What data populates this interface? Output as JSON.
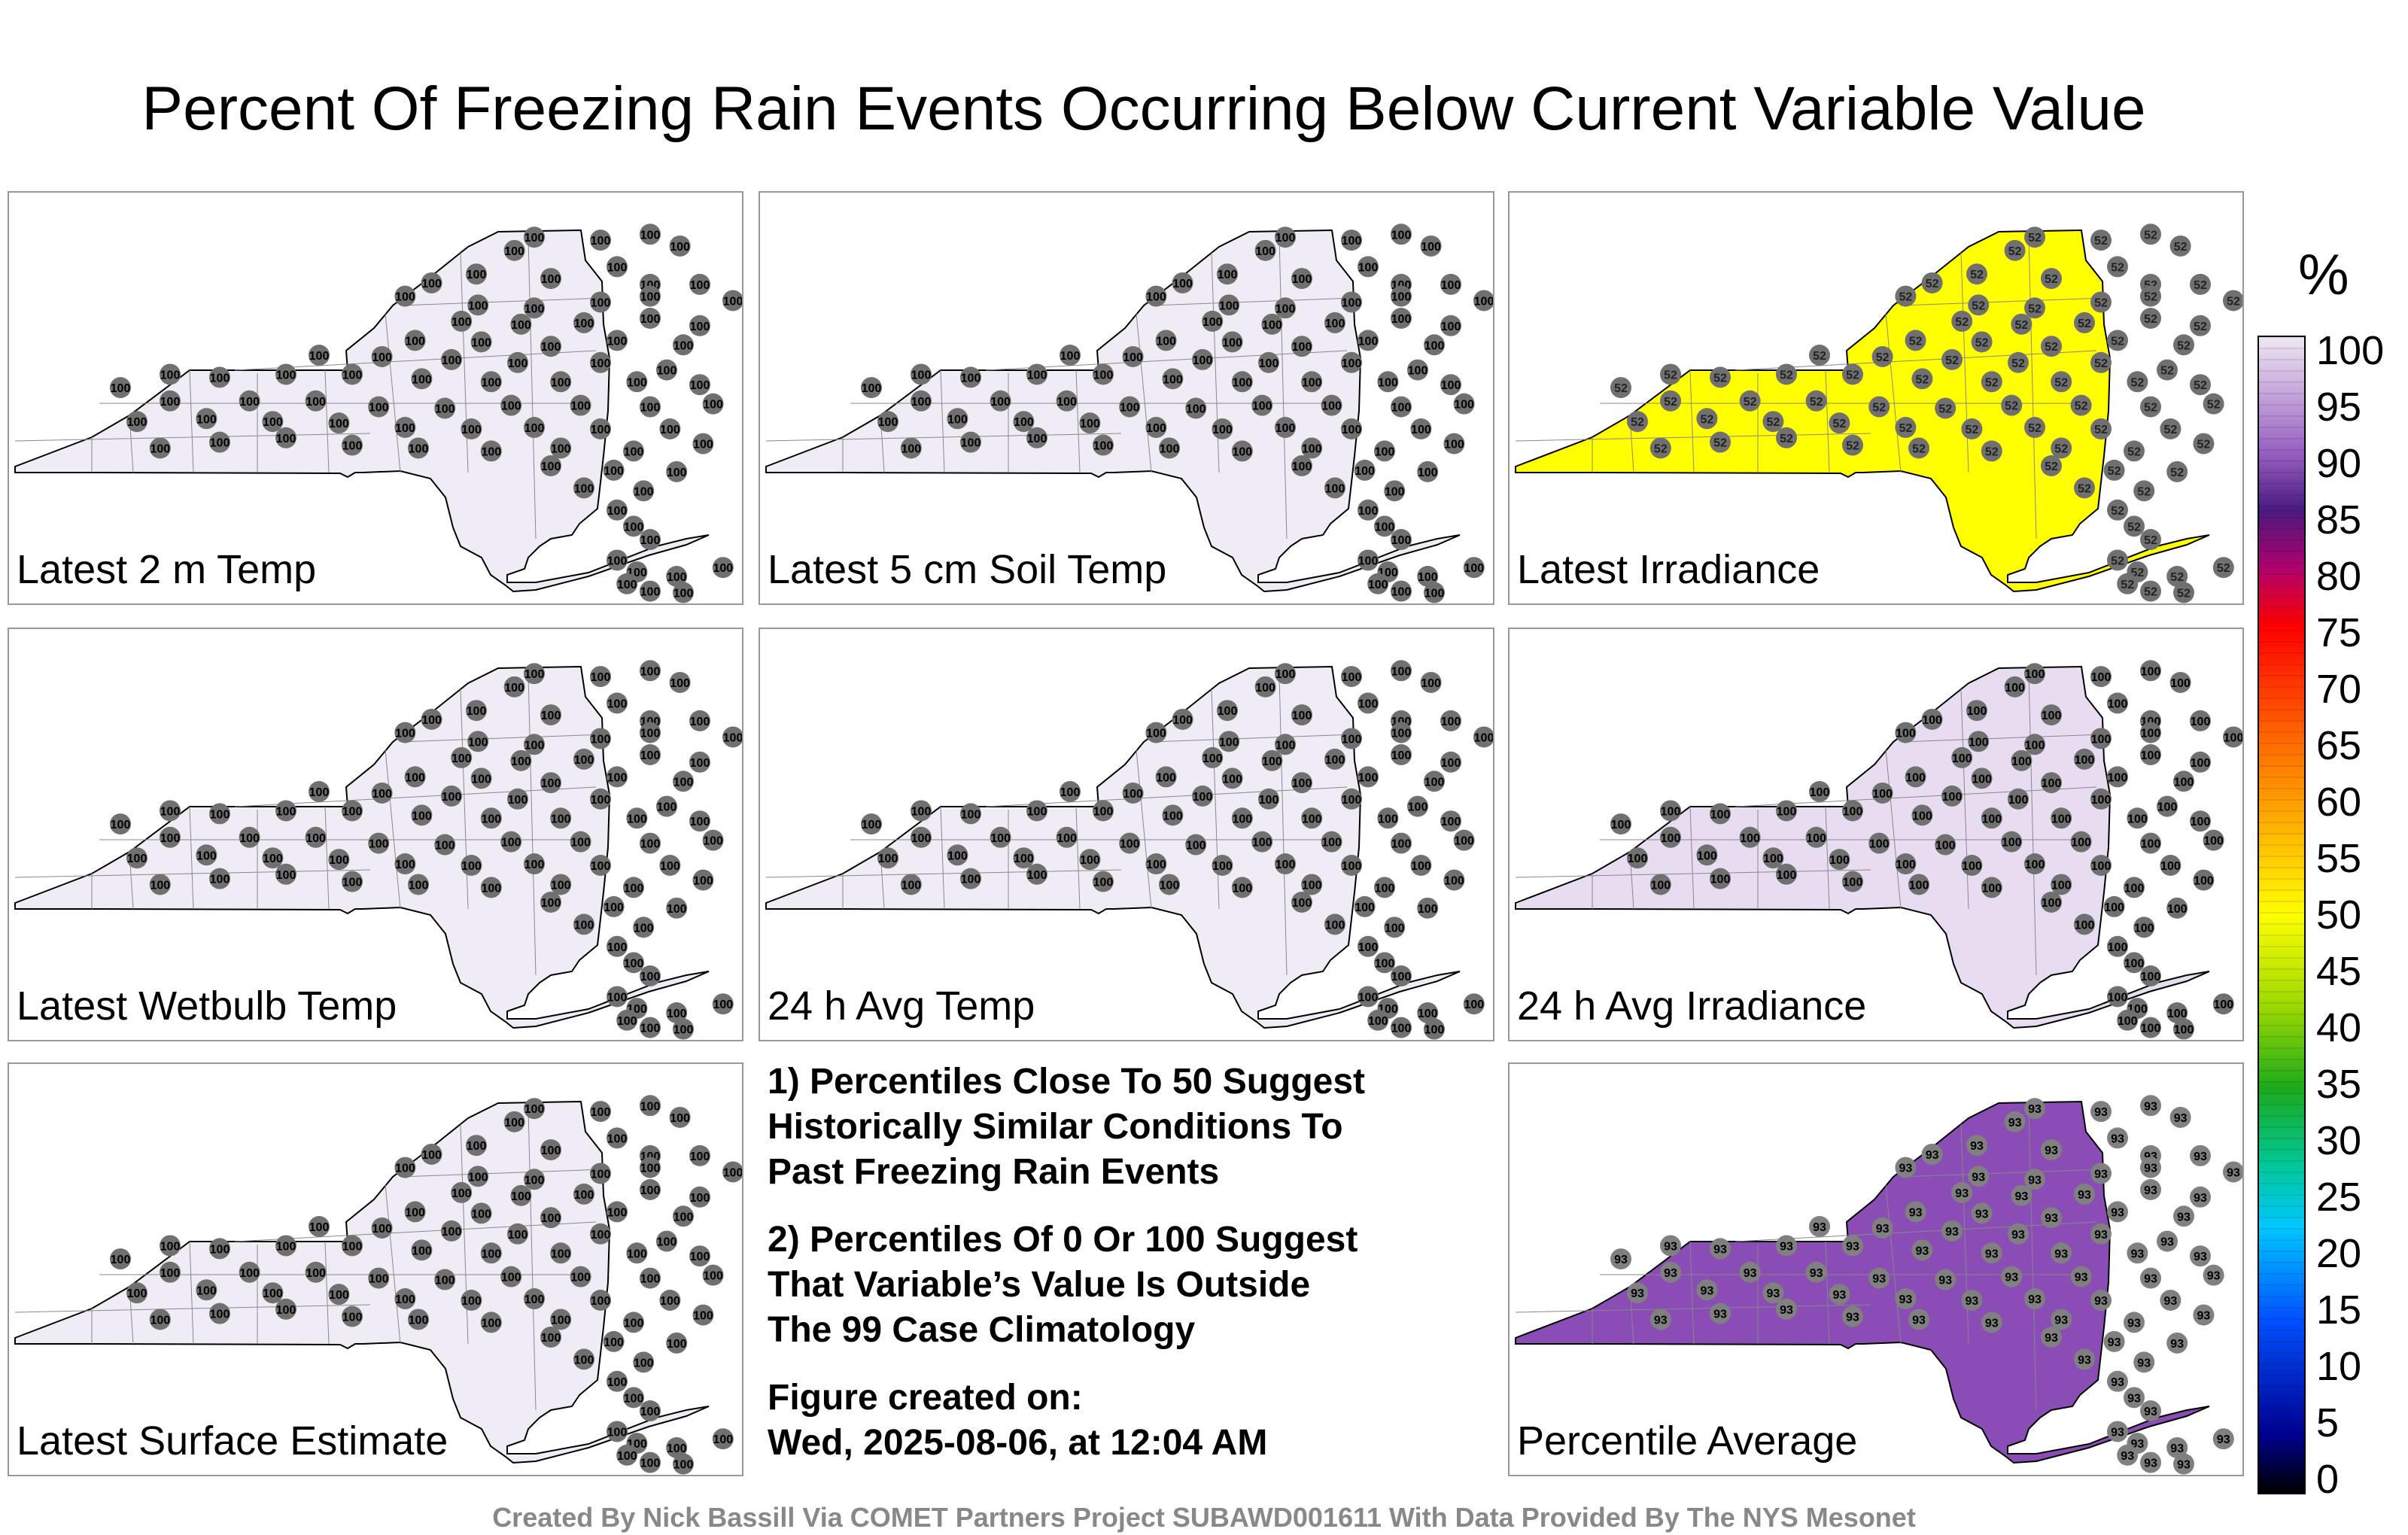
{
  "title": "Percent Of Freezing Rain Events Occurring Below Current Variable Value",
  "panels": [
    {
      "label": "Latest 2 m Temp",
      "fill": "#f0ecf5",
      "value": "100"
    },
    {
      "label": "Latest 5 cm Soil Temp",
      "fill": "#f0ecf5",
      "value": "100"
    },
    {
      "label": "Latest Irradiance",
      "fill": "#ffff00",
      "value": "52"
    },
    {
      "label": "Latest Wetbulb Temp",
      "fill": "#f0ecf5",
      "value": "100"
    },
    {
      "label": "24 h Avg Temp",
      "fill": "#f0ecf5",
      "value": "100"
    },
    {
      "label": "24 h Avg Irradiance",
      "fill": "#e8ddf0",
      "value": "100"
    },
    {
      "label": "Latest Surface Estimate",
      "fill": "#f0ecf5",
      "value": "100"
    },
    {
      "label": "Percentile Average",
      "fill": "#8a4db5",
      "value": "93"
    }
  ],
  "notes": [
    "1) Percentiles Close To 50 Suggest\nHistorically Similar Conditions To\nPast Freezing Rain Events",
    "2) Percentiles Of 0 Or 100 Suggest\nThat Variable’s Value Is Outside\nThe 99 Case Climatology",
    "Figure created on:\nWed, 2025-08-06, at 12:04 AM"
  ],
  "colorbar": {
    "unit": "%",
    "ticks": [
      "100",
      "95",
      "90",
      "85",
      "80",
      "75",
      "70",
      "65",
      "60",
      "55",
      "50",
      "45",
      "40",
      "35",
      "30",
      "25",
      "20",
      "15",
      "10",
      "5",
      "0"
    ]
  },
  "credit": "Created By Nick Bassill Via COMET Partners Project SUBAWD001611 With Data Provided By The NYS Mesonet"
}
